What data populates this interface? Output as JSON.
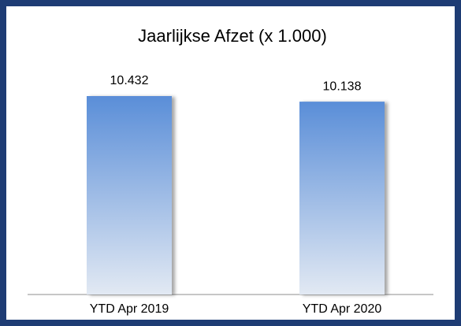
{
  "chart_data": {
    "type": "bar",
    "title": "Jaarlijkse Afzet (x 1.000)",
    "categories": [
      "YTD Apr 2019",
      "YTD Apr 2020"
    ],
    "values": [
      10432,
      10138
    ],
    "value_labels": [
      "10.432",
      "10.138"
    ],
    "color": "#5a8ed8"
  }
}
